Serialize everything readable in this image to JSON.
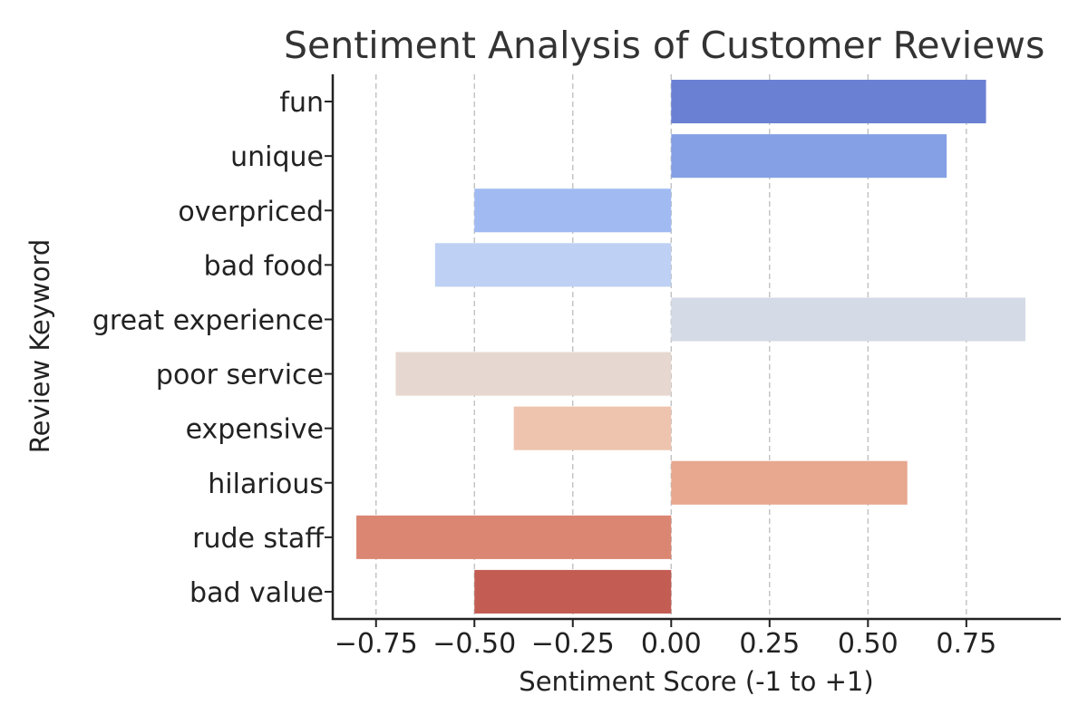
{
  "chart_data": {
    "type": "bar",
    "orientation": "horizontal",
    "title": "Sentiment Analysis of Customer Reviews",
    "xlabel": "Sentiment Score (-1 to +1)",
    "ylabel": "Review Keyword",
    "xlim": [
      -0.86,
      0.99
    ],
    "x_ticks": [
      -0.75,
      -0.5,
      -0.25,
      0.0,
      0.25,
      0.5,
      0.75
    ],
    "x_tick_labels": [
      "−0.75",
      "−0.50",
      "−0.25",
      "0.00",
      "0.25",
      "0.50",
      "0.75"
    ],
    "grid": "vertical-dashed",
    "categories": [
      "fun",
      "unique",
      "overpriced",
      "bad food",
      "great experience",
      "poor service",
      "expensive",
      "hilarious",
      "rude staff",
      "bad value"
    ],
    "values": [
      0.8,
      0.7,
      -0.5,
      -0.6,
      0.9,
      -0.7,
      -0.4,
      0.6,
      -0.8,
      -0.5
    ],
    "colors": [
      "#6a80d3",
      "#85a0e4",
      "#a1bbf2",
      "#bed0f3",
      "#d4dae6",
      "#e6d8d0",
      "#eec4ae",
      "#e7a88f",
      "#da8672",
      "#c35d54"
    ]
  }
}
